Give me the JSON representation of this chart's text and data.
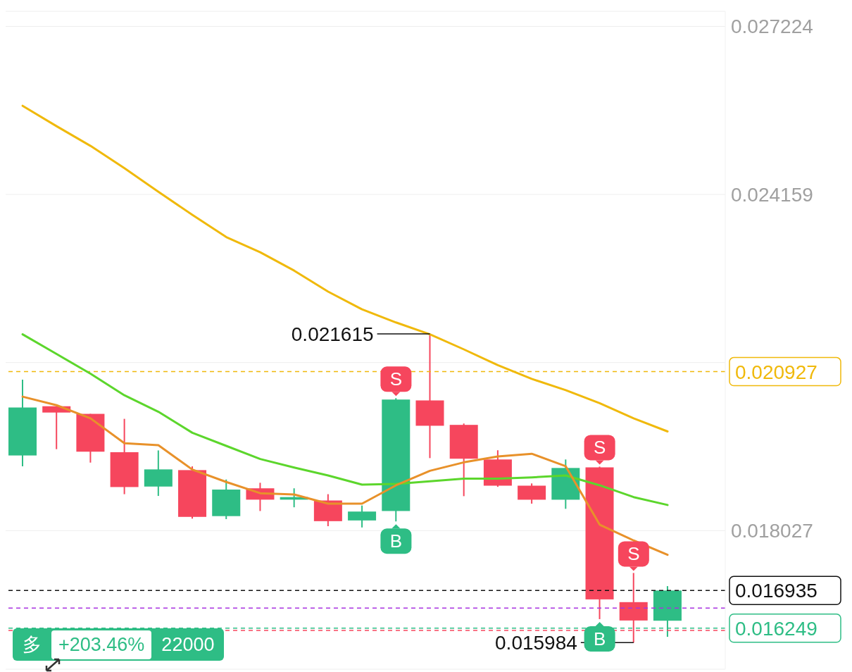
{
  "chart_data": {
    "type": "candlestick",
    "categories": [
      null,
      null,
      null,
      null,
      null,
      null,
      null,
      null,
      null,
      null,
      null,
      null,
      null,
      null,
      null,
      null,
      null,
      null,
      null,
      null
    ],
    "ohlc": [
      [
        0.019398,
        0.020782,
        0.019201,
        0.020273
      ],
      [
        0.020296,
        0.020296,
        0.019513,
        0.020181
      ],
      [
        0.020157,
        0.020157,
        0.019268,
        0.019467
      ],
      [
        0.019458,
        0.020066,
        0.018692,
        0.018822
      ],
      [
        0.018831,
        0.01949,
        0.01866,
        0.019144
      ],
      [
        0.019131,
        0.019199,
        0.018246,
        0.018278
      ],
      [
        0.018292,
        0.018959,
        0.018237,
        0.018776
      ],
      [
        0.018799,
        0.0189,
        0.018385,
        0.018592
      ],
      [
        0.018592,
        0.018799,
        0.018453,
        0.018639
      ],
      [
        0.018577,
        0.018692,
        0.018108,
        0.0182
      ],
      [
        0.018213,
        0.018485,
        0.018085,
        0.018375
      ],
      [
        0.018385,
        0.020443,
        0.018195,
        0.020418
      ],
      [
        0.020402,
        0.021615,
        0.01935,
        0.01994
      ],
      [
        0.019956,
        0.019981,
        0.018656,
        0.019339
      ],
      [
        0.019325,
        0.019493,
        0.018826,
        0.018847
      ],
      [
        0.018847,
        0.018888,
        0.018519,
        0.018591
      ],
      [
        0.018591,
        0.019325,
        0.018425,
        0.01917
      ],
      [
        0.019181,
        0.019195,
        0.016413,
        0.016773
      ],
      [
        0.016723,
        0.017255,
        0.015984,
        0.016388
      ],
      [
        0.016384,
        0.017015,
        0.01609,
        0.016935
      ]
    ],
    "colors": [
      "#2ebd85",
      "#f6465d",
      "#f6465d",
      "#f6465d",
      "#2ebd85",
      "#f6465d",
      "#2ebd85",
      "#f6465d",
      "#2ebd85",
      "#f6465d",
      "#2ebd85",
      "#2ebd85",
      "#f6465d",
      "#f6465d",
      "#f6465d",
      "#f6465d",
      "#2ebd85",
      "#f6465d",
      "#f6465d",
      "#2ebd85"
    ],
    "series": [
      {
        "type": "line",
        "color": "#f0b90b",
        "values": [
          0.025776,
          0.025404,
          0.025045,
          0.024638,
          0.024207,
          0.023788,
          0.023381,
          0.023105,
          0.02277,
          0.022387,
          0.022063,
          0.021824,
          0.021608,
          0.021333,
          0.021045,
          0.020794,
          0.02059,
          0.020351,
          0.020076,
          0.019836
        ]
      },
      {
        "type": "line",
        "color": "#5cd62c",
        "values": [
          0.021608,
          0.021249,
          0.02089,
          0.020495,
          0.020195,
          0.019812,
          0.019573,
          0.019333,
          0.019177,
          0.019034,
          0.018866,
          0.018878,
          0.018926,
          0.018974,
          0.018974,
          0.018998,
          0.019034,
          0.018854,
          0.018639,
          0.018495
        ]
      },
      {
        "type": "line",
        "color": "#e8912a",
        "values": [
          0.020471,
          0.020315,
          0.020076,
          0.01962,
          0.019585,
          0.019141,
          0.018914,
          0.01871,
          0.018686,
          0.018519,
          0.018519,
          0.018854,
          0.019118,
          0.019273,
          0.019381,
          0.019429,
          0.019201,
          0.018136,
          0.017848,
          0.017585
        ]
      }
    ],
    "ylim": [
      0.0155,
      0.0275
    ],
    "yticks": [
      0.027224,
      0.024159,
      {
        "value": 0.021093,
        "label": null
      },
      0.018027
    ],
    "grid": "y",
    "legend": false,
    "tick_labels": "y",
    "marker": "none",
    "ref_lines": [
      {
        "axis": "y",
        "value": 0.020927,
        "label": "0.020927",
        "color": "#f0b90b",
        "line_style": "dashed"
      },
      {
        "axis": "y",
        "value": 0.016935,
        "label": "0.016935",
        "color": "#111111",
        "line_style": "dashed"
      },
      {
        "axis": "y",
        "value": 0.016615,
        "label": null,
        "color": "#a832e0",
        "line_style": "dashed"
      },
      {
        "axis": "y",
        "value": 0.016249,
        "label": "0.016249",
        "color": "#2ebd85",
        "line_style": "dashed"
      },
      {
        "axis": "y",
        "value": 0.016208,
        "label": null,
        "color": "#f6465d",
        "line_style": "dashed"
      }
    ],
    "annotations": [
      "0.021615",
      "0.015984",
      {
        "text": "S",
        "y": 0.020443
      },
      {
        "text": "B",
        "y": 0.018195
      },
      {
        "text": "S",
        "y": 0.019195
      },
      {
        "text": "B",
        "y": 0.016413
      },
      {
        "text": "S",
        "y": 0.017255
      },
      "多",
      "+203.46%",
      "22000"
    ]
  }
}
